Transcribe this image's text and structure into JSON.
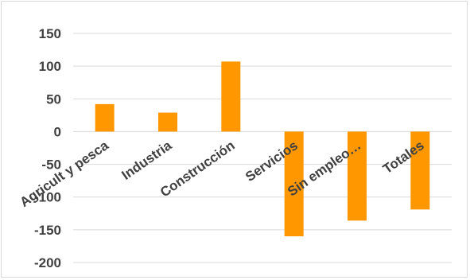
{
  "chart_data": {
    "type": "bar",
    "categories": [
      "Agricult y pesca",
      "Industria",
      "Construcción",
      "Servicios",
      "Sin empleo…",
      "Totales"
    ],
    "values": [
      42,
      29,
      107,
      -160,
      -136,
      -119
    ],
    "ylim": [
      -200,
      150
    ],
    "yticks": [
      150,
      100,
      50,
      0,
      -50,
      -100,
      -150,
      -200
    ],
    "ytick_labels": [
      "150",
      "100",
      "50",
      "0",
      "-50",
      "-100",
      "-150",
      "-200"
    ],
    "grid": true,
    "legend": "none",
    "bar_color": "#ff9800",
    "grid_color": "#d9d9d9"
  }
}
